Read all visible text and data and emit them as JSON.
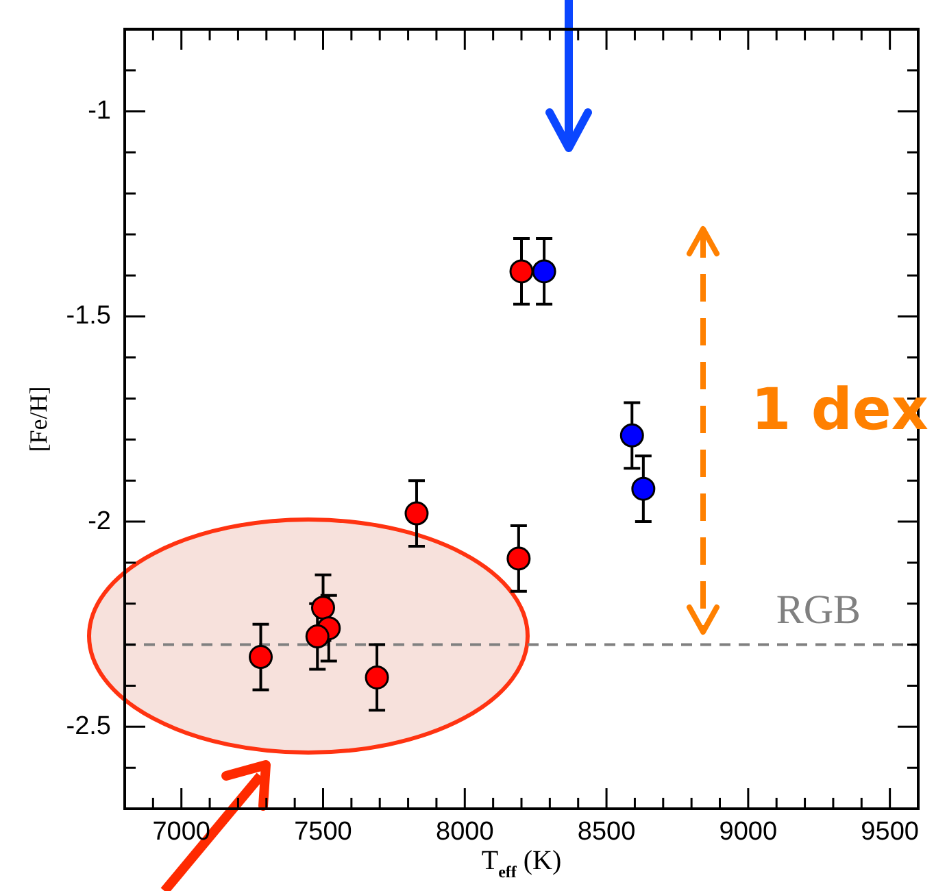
{
  "chart_data": {
    "type": "scatter",
    "xlabel": "T$_{eff}$ (K)",
    "ylabel": "[Fe/H]",
    "xlim": [
      6800,
      9600
    ],
    "ylim": [
      -2.7,
      -0.8
    ],
    "xticks": [
      {
        "value": 6900,
        "label": null
      },
      7000,
      {
        "value": 7100,
        "label": null
      },
      {
        "value": 7200,
        "label": null
      },
      {
        "value": 7300,
        "label": null
      },
      {
        "value": 7400,
        "label": null
      },
      7500,
      {
        "value": 7600,
        "label": null
      },
      {
        "value": 7700,
        "label": null
      },
      {
        "value": 7800,
        "label": null
      },
      {
        "value": 7900,
        "label": null
      },
      8000,
      {
        "value": 8100,
        "label": null
      },
      {
        "value": 8200,
        "label": null
      },
      {
        "value": 8300,
        "label": null
      },
      {
        "value": 8400,
        "label": null
      },
      8500,
      {
        "value": 8600,
        "label": null
      },
      {
        "value": 8700,
        "label": null
      },
      {
        "value": 8800,
        "label": null
      },
      {
        "value": 8900,
        "label": null
      },
      9000,
      {
        "value": 9100,
        "label": null
      },
      {
        "value": 9200,
        "label": null
      },
      {
        "value": 9300,
        "label": null
      },
      {
        "value": 9400,
        "label": null
      },
      9500
    ],
    "yticks": [
      {
        "value": -2.6,
        "label": null
      },
      -2.5,
      {
        "value": -2.4,
        "label": null
      },
      {
        "value": -2.3,
        "label": null
      },
      {
        "value": -2.2,
        "label": null
      },
      {
        "value": -2.1,
        "label": null
      },
      -2,
      {
        "value": -1.9,
        "label": null
      },
      {
        "value": -1.8,
        "label": null
      },
      {
        "value": -1.7,
        "label": null
      },
      {
        "value": -1.6,
        "label": null
      },
      -1.5,
      {
        "value": -1.4,
        "label": null
      },
      {
        "value": -1.3,
        "label": null
      },
      {
        "value": -1.2,
        "label": null
      },
      {
        "value": -1.1,
        "label": null
      },
      -1,
      {
        "value": -0.9,
        "label": null
      }
    ],
    "marker": "circle",
    "series": [
      {
        "color": "#ff0000",
        "x": [
          7280,
          7500,
          7520,
          7480,
          7690,
          7830,
          8190,
          8200
        ],
        "values": [
          -2.33,
          -2.21,
          -2.26,
          -2.28,
          -2.38,
          -1.98,
          -2.09,
          -1.39
        ],
        "errors": [
          0.08,
          0.08,
          0.08,
          0.08,
          0.08,
          0.08,
          0.08,
          0.08
        ]
      },
      {
        "color": "#0000ff",
        "x": [
          8280,
          8590,
          8630
        ],
        "values": [
          -1.39,
          -1.79,
          -1.92
        ],
        "errors": [
          0.08,
          0.08,
          0.08
        ]
      }
    ],
    "ref_lines": [
      {
        "axis": "y",
        "value": -2.3,
        "label": "RGB",
        "color": "#808080",
        "line_style": "dashed"
      }
    ],
    "annotations": [
      "1 dex"
    ]
  }
}
